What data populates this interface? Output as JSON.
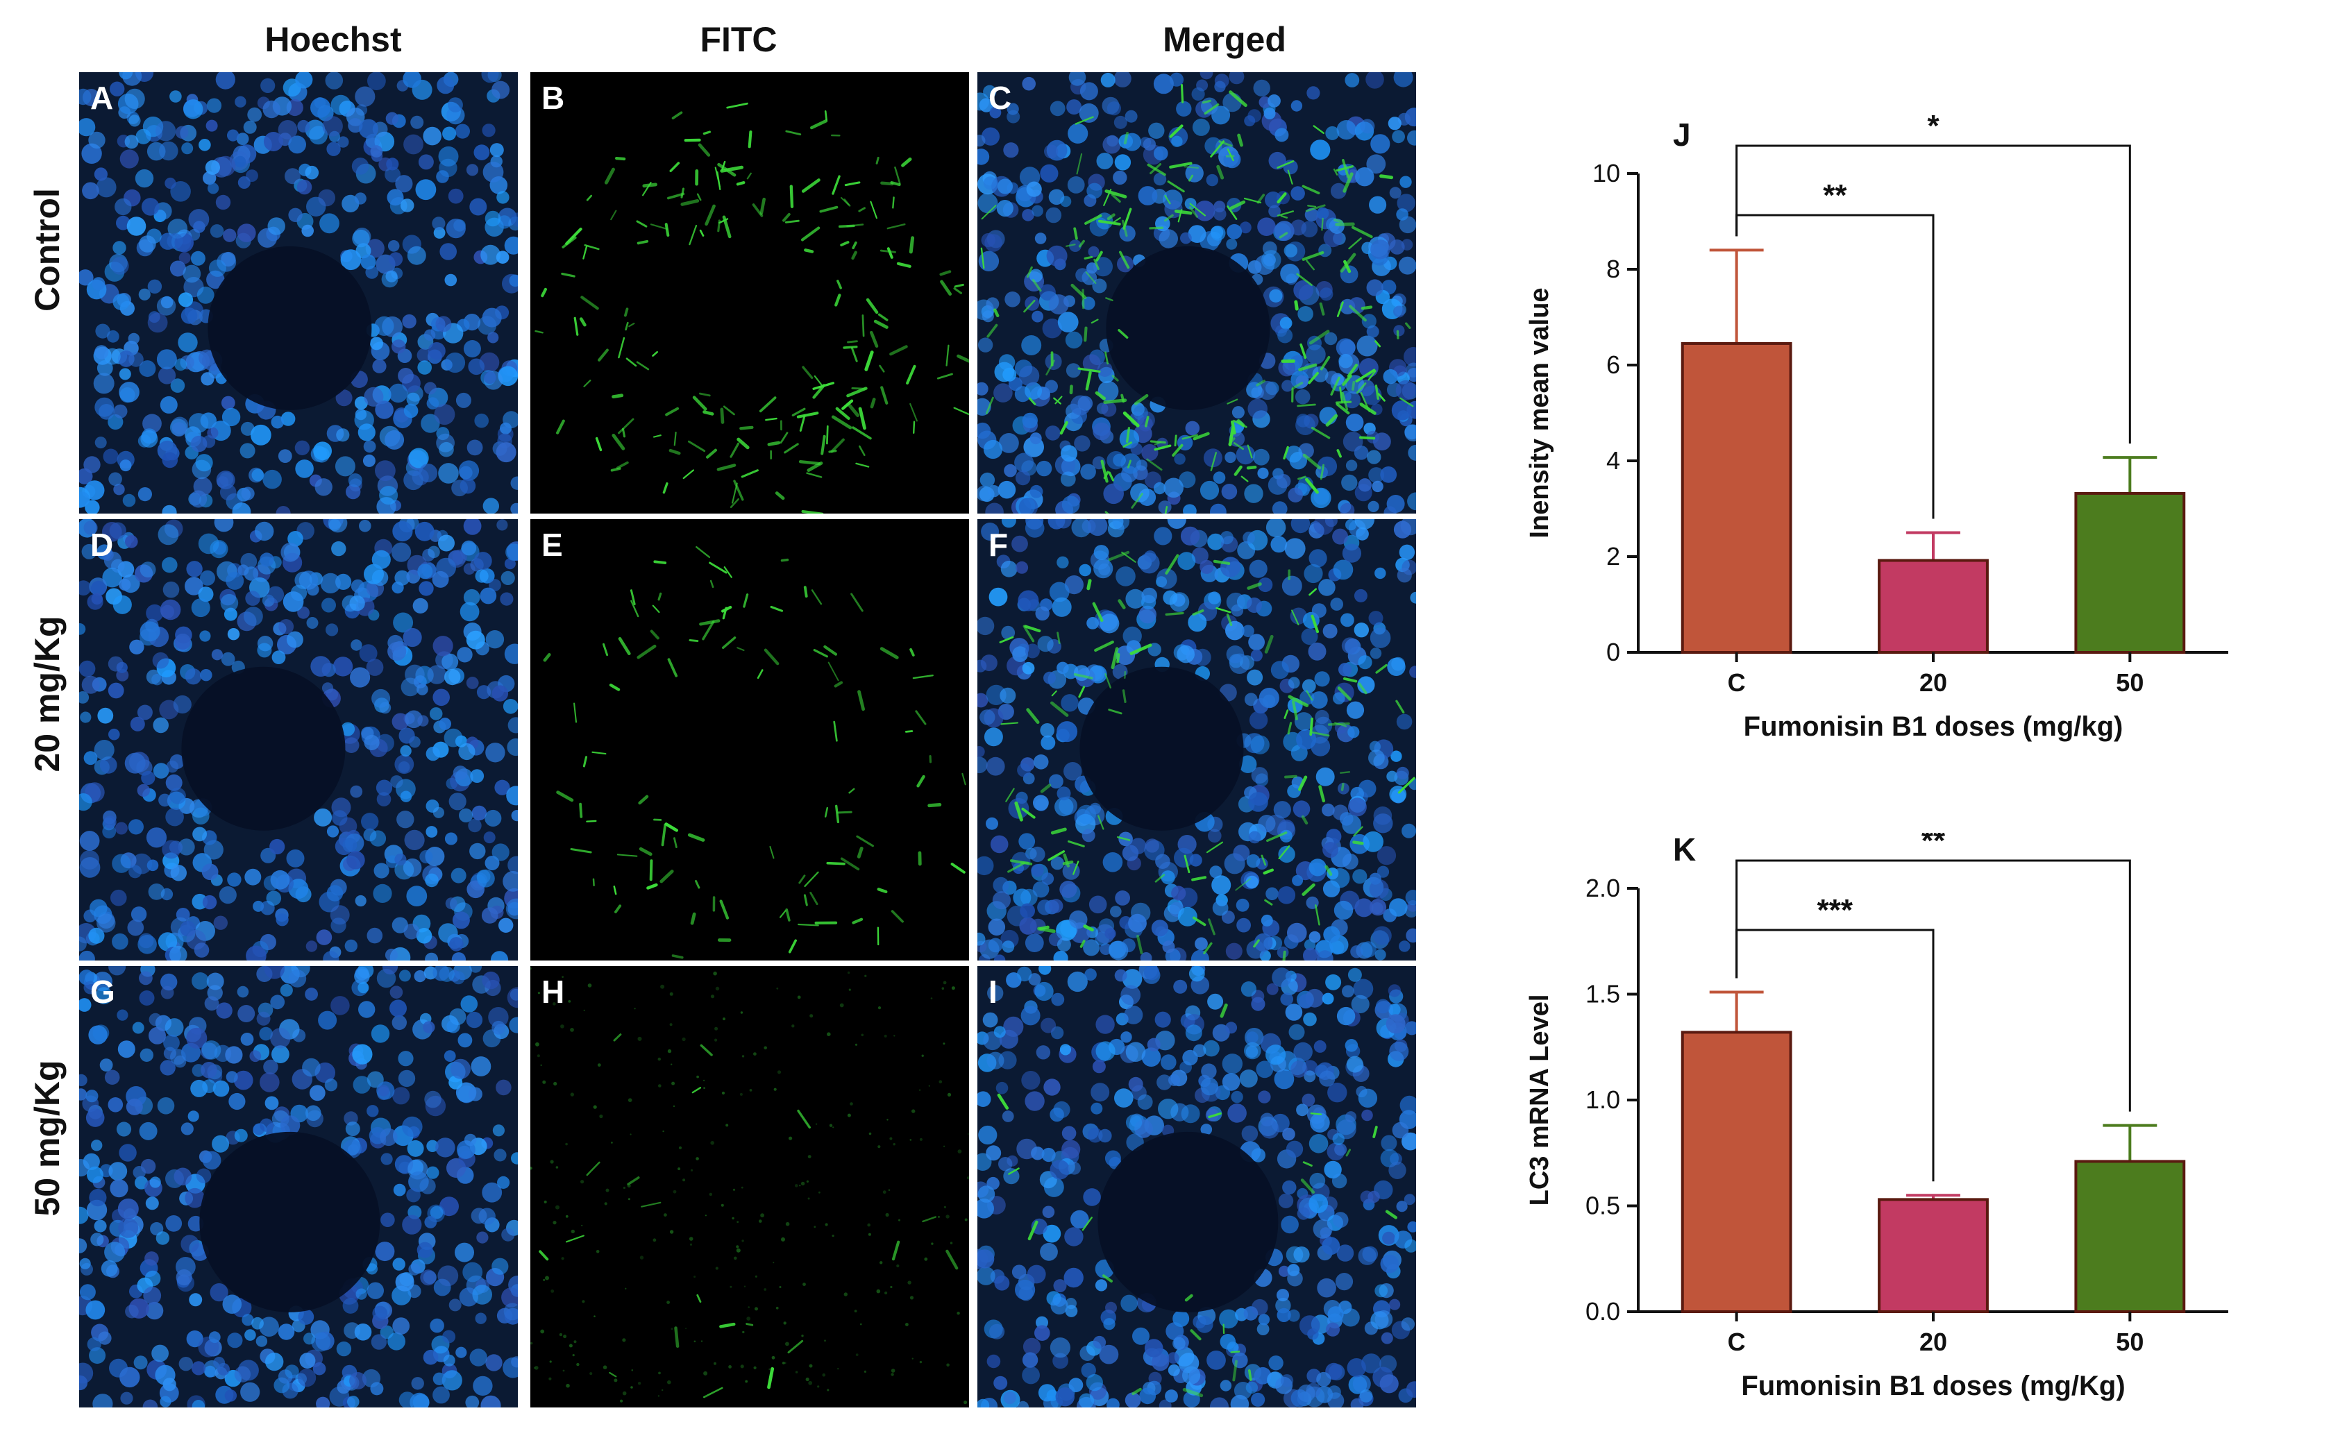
{
  "columns": [
    "Hoechst",
    "FITC",
    "Merged"
  ],
  "rows": [
    "Control",
    "20 mg/Kg",
    "50 mg/Kg"
  ],
  "panel_letters": [
    "A",
    "B",
    "C",
    "D",
    "E",
    "F",
    "G",
    "H",
    "I"
  ],
  "colors": {
    "control_bar": "#c0553a",
    "dose20_bar": "#c23a62",
    "dose50_bar": "#4c7c1e",
    "nuclei_blue": "#2a5ea8",
    "fitc_green": "#3ddc3a"
  },
  "chart_data": [
    {
      "type": "bar",
      "panel": "J",
      "categories": [
        "C",
        "20",
        "50"
      ],
      "values": [
        6.45,
        1.92,
        3.32
      ],
      "errors": [
        1.95,
        0.58,
        0.75
      ],
      "ylabel": "Inensity mean value",
      "xlabel": "Fumonisin B1 doses (mg/kg)",
      "ylim": [
        0,
        10
      ],
      "yticks": [
        "0",
        "2",
        "4",
        "6",
        "8",
        "10"
      ],
      "significance": [
        {
          "from": "C",
          "to": "20",
          "label": "**"
        },
        {
          "from": "C",
          "to": "50",
          "label": "*"
        }
      ]
    },
    {
      "type": "bar",
      "panel": "K",
      "categories": [
        "C",
        "20",
        "50"
      ],
      "values": [
        1.32,
        0.53,
        0.71
      ],
      "errors": [
        0.19,
        0.02,
        0.17
      ],
      "ylabel": "LC3 mRNA Level",
      "xlabel": "Fumonisin B1 doses (mg/Kg)",
      "ylim": [
        0,
        2.0
      ],
      "yticks": [
        "0.0",
        "0.5",
        "1.0",
        "1.5",
        "2.0"
      ],
      "significance": [
        {
          "from": "C",
          "to": "20",
          "label": "***"
        },
        {
          "from": "C",
          "to": "50",
          "label": "**"
        }
      ]
    }
  ]
}
